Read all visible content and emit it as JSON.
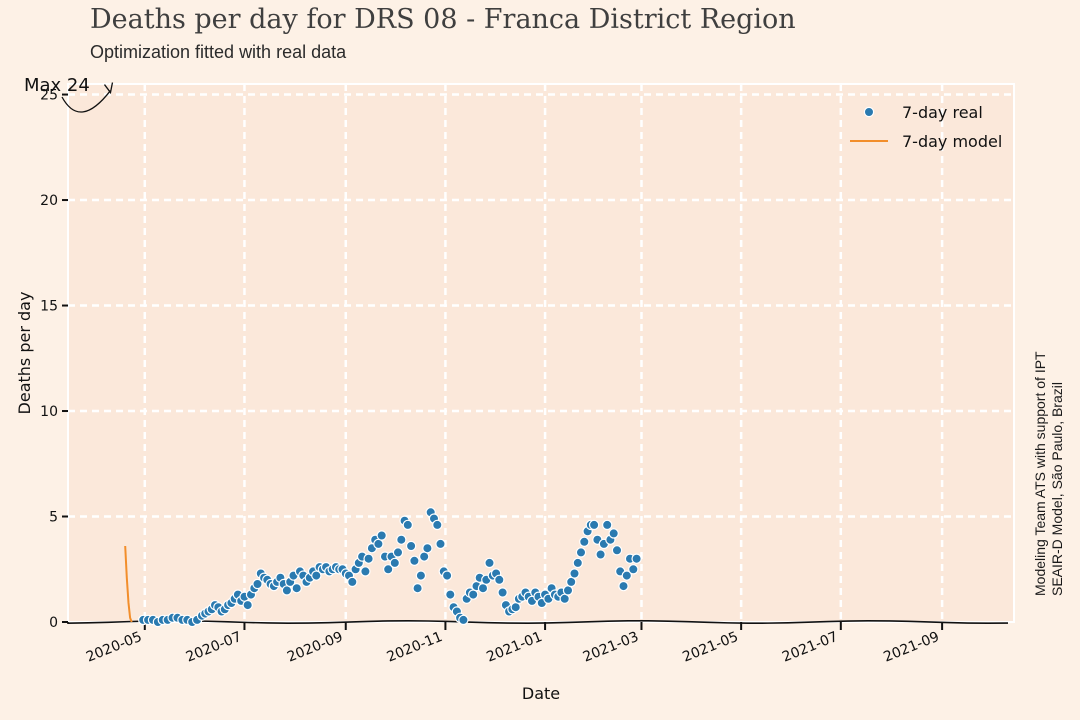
{
  "chart_data": {
    "type": "scatter",
    "title": "Deaths per day for DRS 08 - Franca District Region",
    "subtitle": "Optimization fitted with real data",
    "xlabel": "Date",
    "ylabel": "Deaths per day",
    "side_note": [
      "Modeling Team ATS with support of IPT",
      "SEAIR-D Model, São Paulo, Brazil"
    ],
    "xlim": [
      "2020-03-15",
      "2021-10-15"
    ],
    "ylim": [
      0,
      25.5
    ],
    "x_ticks": [
      "2020-05",
      "2020-07",
      "2020-09",
      "2020-11",
      "2021-01",
      "2021-03",
      "2021-05",
      "2021-07",
      "2021-09"
    ],
    "y_ticks": [
      0,
      5,
      10,
      15,
      20,
      25
    ],
    "grid": true,
    "legend_position": "top-right",
    "annotation": {
      "text": "Max 24",
      "date": "2020-04-10",
      "value": 25
    },
    "series": [
      {
        "name": "7-day real",
        "kind": "points",
        "color": "#2a7ab0",
        "points": [
          [
            "2020-04-30",
            0.1
          ],
          [
            "2020-05-03",
            0.1
          ],
          [
            "2020-05-06",
            0.1
          ],
          [
            "2020-05-09",
            0.0
          ],
          [
            "2020-05-12",
            0.1
          ],
          [
            "2020-05-15",
            0.1
          ],
          [
            "2020-05-18",
            0.2
          ],
          [
            "2020-05-21",
            0.2
          ],
          [
            "2020-05-24",
            0.1
          ],
          [
            "2020-05-27",
            0.1
          ],
          [
            "2020-05-30",
            0.0
          ],
          [
            "2020-06-02",
            0.1
          ],
          [
            "2020-06-05",
            0.3
          ],
          [
            "2020-06-07",
            0.4
          ],
          [
            "2020-06-09",
            0.5
          ],
          [
            "2020-06-11",
            0.6
          ],
          [
            "2020-06-13",
            0.8
          ],
          [
            "2020-06-15",
            0.7
          ],
          [
            "2020-06-17",
            0.5
          ],
          [
            "2020-06-19",
            0.6
          ],
          [
            "2020-06-21",
            0.8
          ],
          [
            "2020-06-23",
            0.9
          ],
          [
            "2020-06-25",
            1.1
          ],
          [
            "2020-06-27",
            1.3
          ],
          [
            "2020-06-29",
            1.0
          ],
          [
            "2020-07-01",
            1.2
          ],
          [
            "2020-07-03",
            0.8
          ],
          [
            "2020-07-05",
            1.3
          ],
          [
            "2020-07-07",
            1.6
          ],
          [
            "2020-07-09",
            1.8
          ],
          [
            "2020-07-11",
            2.3
          ],
          [
            "2020-07-13",
            2.1
          ],
          [
            "2020-07-15",
            2.0
          ],
          [
            "2020-07-17",
            1.8
          ],
          [
            "2020-07-19",
            1.7
          ],
          [
            "2020-07-21",
            1.9
          ],
          [
            "2020-07-23",
            2.1
          ],
          [
            "2020-07-25",
            1.8
          ],
          [
            "2020-07-27",
            1.5
          ],
          [
            "2020-07-29",
            1.9
          ],
          [
            "2020-07-31",
            2.2
          ],
          [
            "2020-08-02",
            1.6
          ],
          [
            "2020-08-04",
            2.4
          ],
          [
            "2020-08-06",
            2.2
          ],
          [
            "2020-08-08",
            1.9
          ],
          [
            "2020-08-10",
            2.1
          ],
          [
            "2020-08-12",
            2.4
          ],
          [
            "2020-08-14",
            2.2
          ],
          [
            "2020-08-16",
            2.6
          ],
          [
            "2020-08-18",
            2.5
          ],
          [
            "2020-08-20",
            2.6
          ],
          [
            "2020-08-22",
            2.4
          ],
          [
            "2020-08-24",
            2.5
          ],
          [
            "2020-08-26",
            2.6
          ],
          [
            "2020-08-28",
            2.5
          ],
          [
            "2020-08-30",
            2.5
          ],
          [
            "2020-09-01",
            2.3
          ],
          [
            "2020-09-03",
            2.2
          ],
          [
            "2020-09-05",
            1.9
          ],
          [
            "2020-09-07",
            2.5
          ],
          [
            "2020-09-09",
            2.8
          ],
          [
            "2020-09-11",
            3.1
          ],
          [
            "2020-09-13",
            2.4
          ],
          [
            "2020-09-15",
            3.0
          ],
          [
            "2020-09-17",
            3.5
          ],
          [
            "2020-09-19",
            3.9
          ],
          [
            "2020-09-21",
            3.7
          ],
          [
            "2020-09-23",
            4.1
          ],
          [
            "2020-09-25",
            3.1
          ],
          [
            "2020-09-27",
            2.5
          ],
          [
            "2020-09-29",
            3.1
          ],
          [
            "2020-10-01",
            2.8
          ],
          [
            "2020-10-03",
            3.3
          ],
          [
            "2020-10-05",
            3.9
          ],
          [
            "2020-10-07",
            4.8
          ],
          [
            "2020-10-09",
            4.6
          ],
          [
            "2020-10-11",
            3.6
          ],
          [
            "2020-10-13",
            2.9
          ],
          [
            "2020-10-15",
            1.6
          ],
          [
            "2020-10-17",
            2.2
          ],
          [
            "2020-10-19",
            3.1
          ],
          [
            "2020-10-21",
            3.5
          ],
          [
            "2020-10-23",
            5.2
          ],
          [
            "2020-10-25",
            4.9
          ],
          [
            "2020-10-27",
            4.6
          ],
          [
            "2020-10-29",
            3.7
          ],
          [
            "2020-10-31",
            2.4
          ],
          [
            "2020-11-02",
            2.2
          ],
          [
            "2020-11-04",
            1.3
          ],
          [
            "2020-11-06",
            0.7
          ],
          [
            "2020-11-08",
            0.5
          ],
          [
            "2020-11-10",
            0.2
          ],
          [
            "2020-11-12",
            0.1
          ],
          [
            "2020-11-14",
            1.1
          ],
          [
            "2020-11-16",
            1.4
          ],
          [
            "2020-11-18",
            1.3
          ],
          [
            "2020-11-20",
            1.7
          ],
          [
            "2020-11-22",
            2.1
          ],
          [
            "2020-11-24",
            1.6
          ],
          [
            "2020-11-26",
            2.0
          ],
          [
            "2020-11-28",
            2.8
          ],
          [
            "2020-11-30",
            2.2
          ],
          [
            "2020-12-02",
            2.3
          ],
          [
            "2020-12-04",
            2.0
          ],
          [
            "2020-12-06",
            1.4
          ],
          [
            "2020-12-08",
            0.8
          ],
          [
            "2020-12-10",
            0.5
          ],
          [
            "2020-12-12",
            0.6
          ],
          [
            "2020-12-14",
            0.7
          ],
          [
            "2020-12-16",
            1.1
          ],
          [
            "2020-12-18",
            1.2
          ],
          [
            "2020-12-20",
            1.4
          ],
          [
            "2020-12-22",
            1.2
          ],
          [
            "2020-12-24",
            1.0
          ],
          [
            "2020-12-26",
            1.4
          ],
          [
            "2020-12-28",
            1.2
          ],
          [
            "2020-12-30",
            0.9
          ],
          [
            "2021-01-01",
            1.3
          ],
          [
            "2021-01-03",
            1.1
          ],
          [
            "2021-01-05",
            1.6
          ],
          [
            "2021-01-07",
            1.3
          ],
          [
            "2021-01-09",
            1.2
          ],
          [
            "2021-01-11",
            1.4
          ],
          [
            "2021-01-13",
            1.1
          ],
          [
            "2021-01-15",
            1.5
          ],
          [
            "2021-01-17",
            1.9
          ],
          [
            "2021-01-19",
            2.3
          ],
          [
            "2021-01-21",
            2.8
          ],
          [
            "2021-01-23",
            3.3
          ],
          [
            "2021-01-25",
            3.8
          ],
          [
            "2021-01-27",
            4.3
          ],
          [
            "2021-01-29",
            4.6
          ],
          [
            "2021-01-31",
            4.6
          ],
          [
            "2021-02-02",
            3.9
          ],
          [
            "2021-02-04",
            3.2
          ],
          [
            "2021-02-06",
            3.7
          ],
          [
            "2021-02-08",
            4.6
          ],
          [
            "2021-02-10",
            3.9
          ],
          [
            "2021-02-12",
            4.2
          ],
          [
            "2021-02-14",
            3.4
          ],
          [
            "2021-02-16",
            2.4
          ],
          [
            "2021-02-18",
            1.7
          ],
          [
            "2021-02-20",
            2.2
          ],
          [
            "2021-02-22",
            3.0
          ],
          [
            "2021-02-24",
            2.5
          ],
          [
            "2021-02-26",
            3.0
          ]
        ]
      },
      {
        "name": "7-day model",
        "kind": "line",
        "color": "#f28e2b",
        "points": [
          [
            "2020-04-19",
            3.6
          ],
          [
            "2020-04-20",
            2.1
          ],
          [
            "2020-04-21",
            0.9
          ],
          [
            "2020-04-22",
            0.2
          ],
          [
            "2020-04-23",
            0.0
          ]
        ]
      }
    ]
  }
}
